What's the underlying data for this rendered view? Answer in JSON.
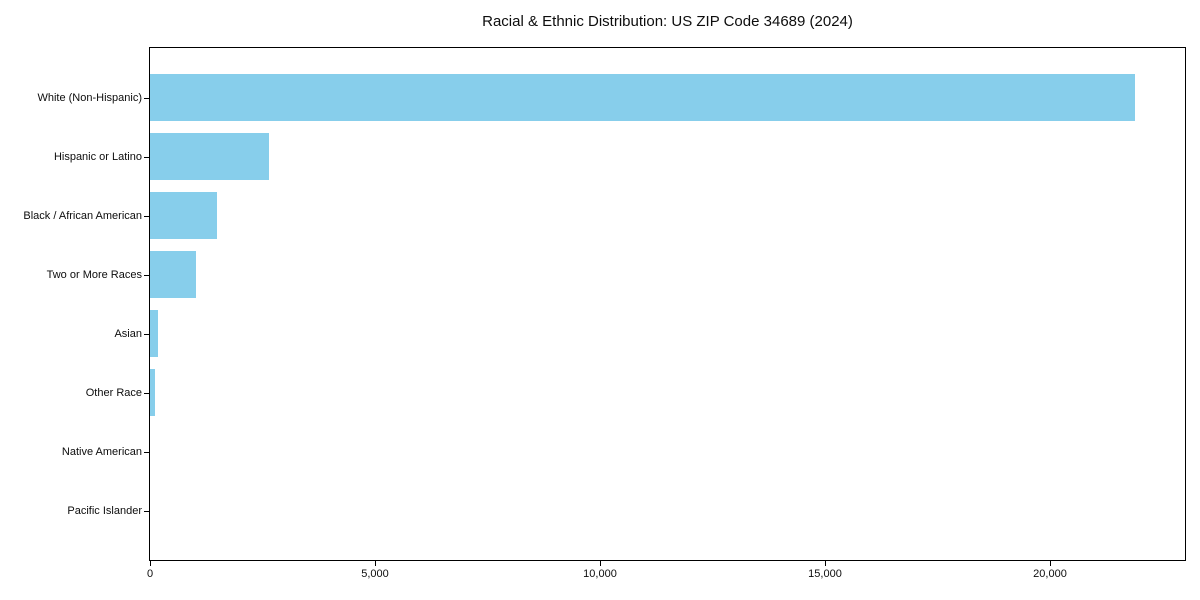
{
  "chart_data": {
    "type": "bar",
    "orientation": "horizontal",
    "title": "Racial & Ethnic Distribution: US ZIP Code 34689 (2024)",
    "categories": [
      "White (Non-Hispanic)",
      "Hispanic or Latino",
      "Black / African American",
      "Two or More Races",
      "Asian",
      "Other Race",
      "Native American",
      "Pacific Islander"
    ],
    "values": [
      21880,
      2640,
      1485,
      1020,
      175,
      110,
      0,
      0
    ],
    "xlabel": "",
    "ylabel": "",
    "xlim": [
      0,
      23000
    ],
    "xticks": [
      0,
      5000,
      10000,
      15000,
      20000
    ],
    "xtick_labels": [
      "0",
      "5,000",
      "10,000",
      "15,000",
      "20,000"
    ],
    "bar_color": "#87CEEB",
    "frame_color": "#000000",
    "grid": false,
    "legend": null
  }
}
